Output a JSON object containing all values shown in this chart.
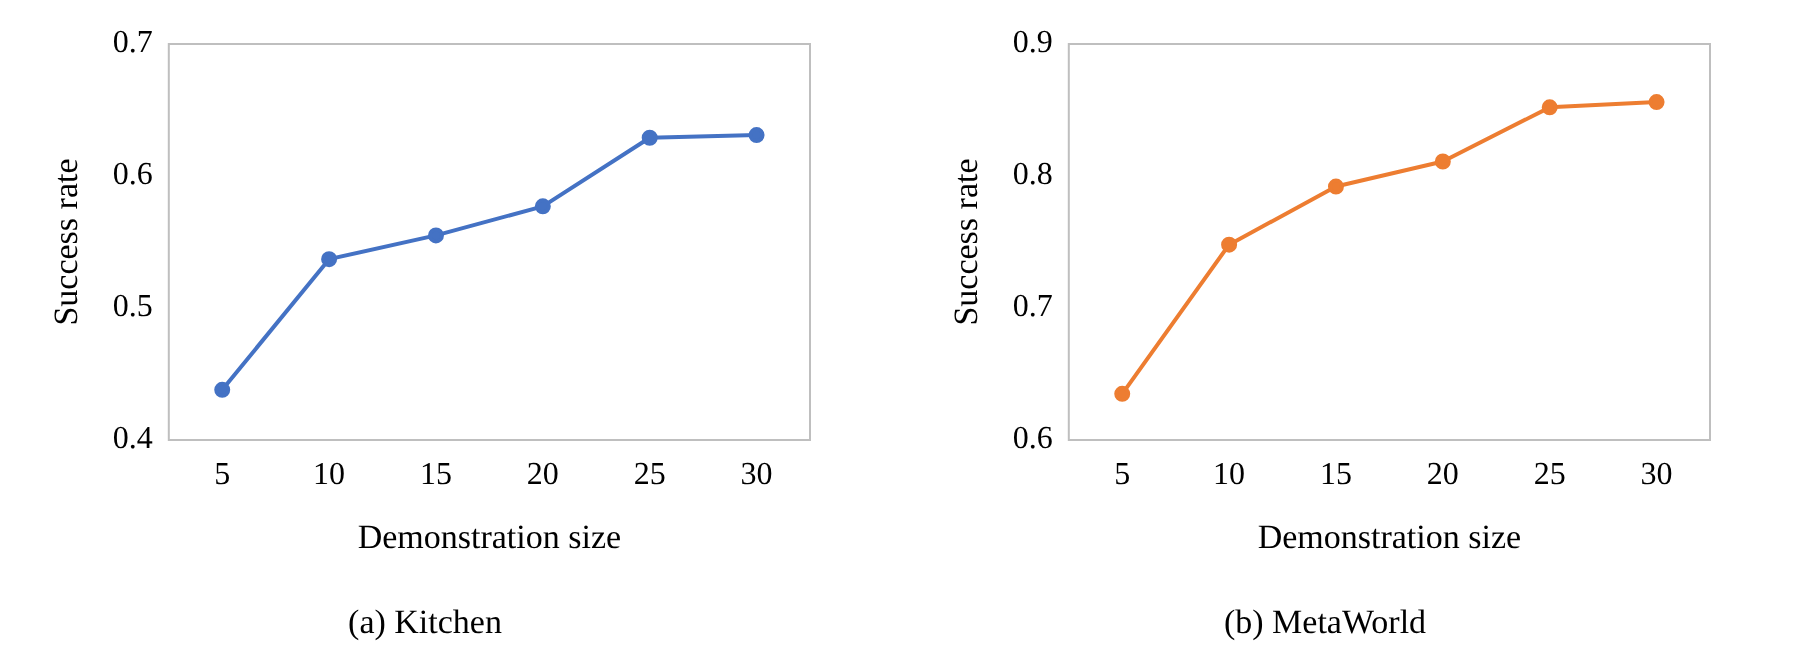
{
  "chart_data": [
    {
      "type": "line",
      "title": "(a) Kitchen",
      "xlabel": "Demonstration size",
      "ylabel": "Success rate",
      "categories": [
        "5",
        "10",
        "15",
        "20",
        "25",
        "30"
      ],
      "series": [
        {
          "color": "#4472c4",
          "values": [
            0.438,
            0.537,
            0.555,
            0.577,
            0.629,
            0.631
          ]
        }
      ],
      "ylim": [
        0.4,
        0.7
      ],
      "yticks": [
        {
          "value": 0.4,
          "label": "0.4"
        },
        {
          "value": 0.5,
          "label": "0.5"
        },
        {
          "value": 0.6,
          "label": "0.6"
        },
        {
          "value": 0.7,
          "label": "0.7"
        }
      ],
      "marker": "circle",
      "grid": false,
      "legend": false
    },
    {
      "type": "line",
      "title": "(b) MetaWorld",
      "xlabel": "Demonstration size",
      "ylabel": "Success rate",
      "categories": [
        "5",
        "10",
        "15",
        "20",
        "25",
        "30"
      ],
      "series": [
        {
          "color": "#ed7d31",
          "values": [
            0.635,
            0.748,
            0.792,
            0.811,
            0.852,
            0.856
          ]
        }
      ],
      "ylim": [
        0.6,
        0.9
      ],
      "yticks": [
        {
          "value": 0.6,
          "label": "0.6"
        },
        {
          "value": 0.7,
          "label": "0.7"
        },
        {
          "value": 0.8,
          "label": "0.8"
        },
        {
          "value": 0.9,
          "label": "0.9"
        }
      ],
      "marker": "circle",
      "grid": false,
      "legend": false
    }
  ]
}
